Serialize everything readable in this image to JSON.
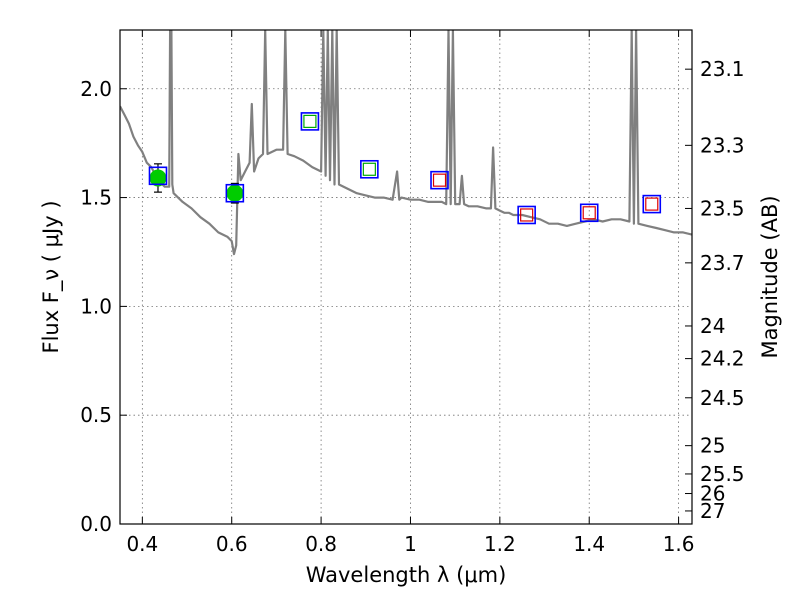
{
  "chart_data": {
    "type": "line",
    "xlabel": "Wavelength  λ (μm)",
    "ylabel": "Flux  F_ν  ( μJy )",
    "y2label": "Magnitude (AB)",
    "xlim": [
      0.35,
      1.63
    ],
    "ylim": [
      0.0,
      2.27
    ],
    "grid": true,
    "x_ticks": [
      "0.4",
      "0.6",
      "0.8",
      "1",
      "1.2",
      "1.4",
      "1.6"
    ],
    "x_tick_values": [
      0.4,
      0.6,
      0.8,
      1.0,
      1.2,
      1.4,
      1.6
    ],
    "y_ticks": [
      "0.0",
      "0.5",
      "1.0",
      "1.5",
      "2.0"
    ],
    "y_tick_values": [
      0.0,
      0.5,
      1.0,
      1.5,
      2.0
    ],
    "mag_ticks": [
      {
        "label": "23.1",
        "flux": 2.09
      },
      {
        "label": "23.3",
        "flux": 1.74
      },
      {
        "label": "23.5",
        "flux": 1.45
      },
      {
        "label": "23.7",
        "flux": 1.2
      },
      {
        "label": "24",
        "flux": 0.91
      },
      {
        "label": "24.2",
        "flux": 0.76
      },
      {
        "label": "24.5",
        "flux": 0.58
      },
      {
        "label": "25",
        "flux": 0.36
      },
      {
        "label": "25.5",
        "flux": 0.23
      },
      {
        "label": "26",
        "flux": 0.14
      },
      {
        "label": "27",
        "flux": 0.06
      }
    ],
    "series": [
      {
        "kind": "model-spectrum",
        "color": "#808080",
        "x": [
          0.35,
          0.36,
          0.37,
          0.38,
          0.39,
          0.4,
          0.41,
          0.42,
          0.43,
          0.44,
          0.45,
          0.46,
          0.462,
          0.465,
          0.467,
          0.47,
          0.49,
          0.51,
          0.53,
          0.55,
          0.57,
          0.59,
          0.6,
          0.605,
          0.61,
          0.615,
          0.62,
          0.63,
          0.64,
          0.645,
          0.65,
          0.66,
          0.67,
          0.675,
          0.68,
          0.7,
          0.715,
          0.72,
          0.725,
          0.74,
          0.76,
          0.78,
          0.8,
          0.805,
          0.81,
          0.815,
          0.82,
          0.825,
          0.83,
          0.835,
          0.84,
          0.86,
          0.88,
          0.9,
          0.92,
          0.94,
          0.96,
          0.97,
          0.975,
          0.98,
          1.0,
          1.02,
          1.04,
          1.06,
          1.07,
          1.08,
          1.085,
          1.09,
          1.095,
          1.1,
          1.11,
          1.115,
          1.12,
          1.13,
          1.15,
          1.17,
          1.18,
          1.185,
          1.19,
          1.2,
          1.21,
          1.22,
          1.23,
          1.25,
          1.27,
          1.29,
          1.31,
          1.33,
          1.35,
          1.37,
          1.39,
          1.41,
          1.43,
          1.45,
          1.47,
          1.49,
          1.495,
          1.5,
          1.505,
          1.51,
          1.53,
          1.55,
          1.57,
          1.59,
          1.61,
          1.63
        ],
        "y": [
          1.92,
          1.88,
          1.84,
          1.78,
          1.74,
          1.71,
          1.66,
          1.64,
          1.6,
          1.57,
          1.55,
          1.55,
          2.27,
          2.27,
          1.56,
          1.52,
          1.48,
          1.45,
          1.41,
          1.38,
          1.34,
          1.32,
          1.3,
          1.24,
          1.28,
          1.7,
          1.58,
          1.62,
          1.66,
          1.93,
          1.62,
          1.68,
          1.7,
          2.27,
          1.7,
          1.72,
          1.72,
          2.27,
          1.7,
          1.69,
          1.67,
          1.64,
          1.62,
          2.27,
          1.6,
          2.27,
          1.58,
          2.27,
          1.56,
          2.27,
          1.56,
          1.54,
          1.52,
          1.51,
          1.5,
          1.5,
          1.49,
          1.62,
          1.49,
          1.5,
          1.49,
          1.49,
          1.48,
          1.48,
          1.48,
          1.47,
          2.27,
          1.47,
          2.27,
          1.47,
          1.47,
          1.6,
          1.47,
          1.46,
          1.46,
          1.45,
          1.45,
          1.73,
          1.45,
          1.44,
          1.43,
          1.43,
          1.42,
          1.42,
          1.41,
          1.4,
          1.38,
          1.38,
          1.37,
          1.38,
          1.39,
          1.4,
          1.39,
          1.4,
          1.4,
          1.39,
          2.27,
          1.38,
          2.27,
          1.38,
          1.37,
          1.36,
          1.35,
          1.34,
          1.34,
          1.33
        ]
      },
      {
        "kind": "observed",
        "marker": "filled-circle",
        "color": "#00cc00",
        "x": [
          0.435,
          0.607
        ],
        "y": [
          1.59,
          1.52
        ],
        "yerr": [
          0.065,
          0.045
        ]
      },
      {
        "kind": "model-photometry",
        "marker": "open-square",
        "color": "#0000ff",
        "x": [
          0.435,
          0.607,
          0.775,
          0.908,
          1.065,
          1.26,
          1.4,
          1.54
        ],
        "y": [
          1.6,
          1.52,
          1.85,
          1.63,
          1.58,
          1.42,
          1.43,
          1.47
        ]
      },
      {
        "kind": "template-points",
        "marker": "open-square",
        "color": "#00aa00",
        "x": [
          0.775,
          0.908
        ],
        "y": [
          1.85,
          1.63
        ]
      },
      {
        "kind": "template-points",
        "marker": "open-square",
        "color": "#dd0000",
        "x": [
          1.065,
          1.26,
          1.4,
          1.54
        ],
        "y": [
          1.58,
          1.42,
          1.43,
          1.47
        ]
      }
    ]
  }
}
